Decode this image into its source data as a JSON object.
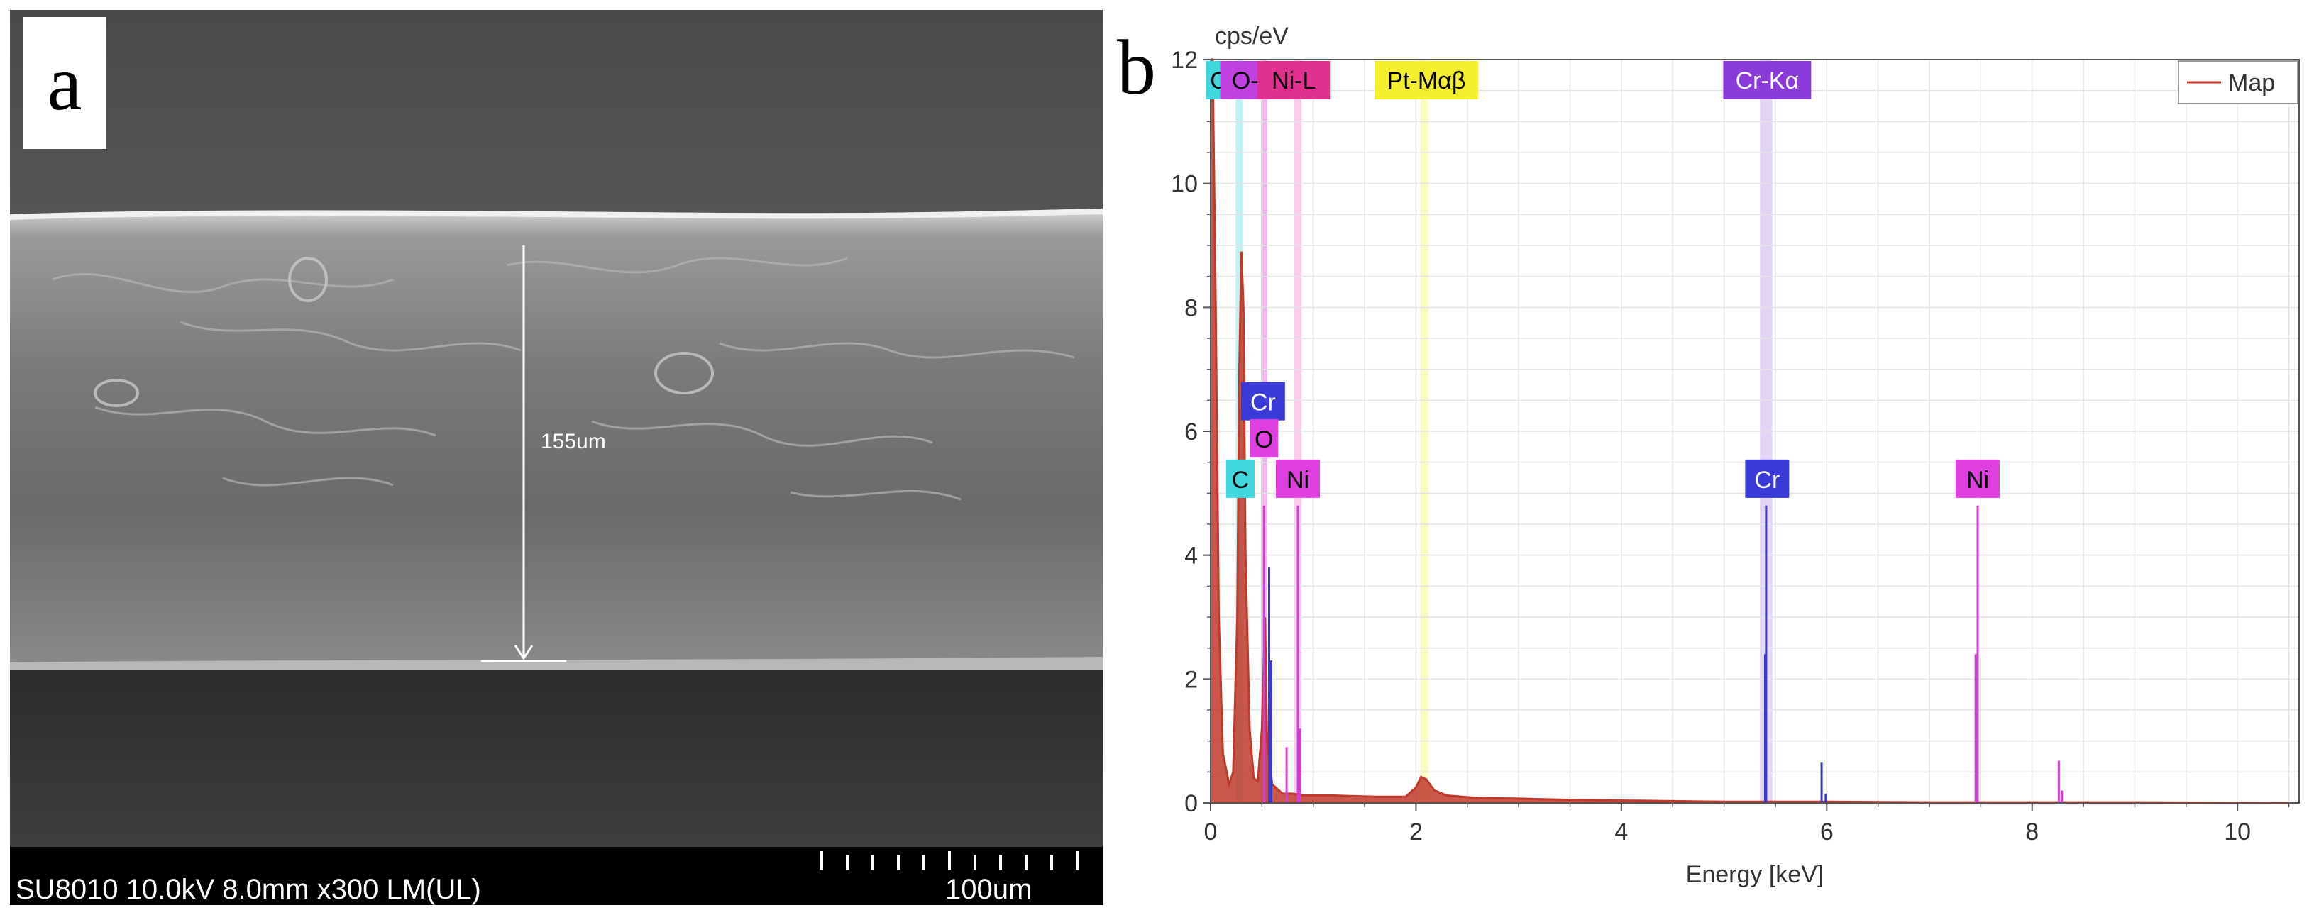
{
  "panel_a": {
    "label": "a",
    "measurement": "155um",
    "info": "SU8010 10.0kV 8.0mm x300 LM(UL)",
    "scale_bar": "100um"
  },
  "panel_b": {
    "label": "b"
  },
  "chart_data": {
    "type": "line",
    "ylabel": "cps/eV",
    "xlabel": "Energy [keV]",
    "xlim": [
      0,
      10.6
    ],
    "ylim": [
      0,
      12
    ],
    "xticks": [
      0,
      2,
      4,
      6,
      8,
      10
    ],
    "yticks": [
      0,
      2,
      4,
      6,
      8,
      10,
      12
    ],
    "grid": true,
    "legend": {
      "position": "top-right",
      "entries": [
        {
          "name": "Map",
          "color": "#c0392b"
        }
      ]
    },
    "series": [
      {
        "name": "Map",
        "color": "#c0392b",
        "points": [
          [
            0.0,
            12.0
          ],
          [
            0.02,
            12.0
          ],
          [
            0.05,
            8.0
          ],
          [
            0.08,
            3.0
          ],
          [
            0.12,
            0.8
          ],
          [
            0.18,
            0.3
          ],
          [
            0.22,
            0.5
          ],
          [
            0.26,
            3.0
          ],
          [
            0.28,
            7.0
          ],
          [
            0.3,
            8.9
          ],
          [
            0.32,
            8.0
          ],
          [
            0.34,
            4.0
          ],
          [
            0.38,
            1.2
          ],
          [
            0.42,
            0.4
          ],
          [
            0.46,
            0.35
          ],
          [
            0.5,
            1.2
          ],
          [
            0.53,
            3.0
          ],
          [
            0.55,
            1.0
          ],
          [
            0.6,
            0.3
          ],
          [
            0.7,
            0.15
          ],
          [
            0.8,
            0.15
          ],
          [
            0.9,
            0.12
          ],
          [
            1.2,
            0.12
          ],
          [
            1.6,
            0.1
          ],
          [
            1.9,
            0.1
          ],
          [
            2.0,
            0.25
          ],
          [
            2.05,
            0.42
          ],
          [
            2.1,
            0.38
          ],
          [
            2.18,
            0.2
          ],
          [
            2.3,
            0.12
          ],
          [
            2.6,
            0.08
          ],
          [
            3.0,
            0.07
          ],
          [
            3.5,
            0.05
          ],
          [
            4.0,
            0.04
          ],
          [
            4.5,
            0.03
          ],
          [
            5.0,
            0.02
          ],
          [
            6.0,
            0.02
          ],
          [
            7.0,
            0.01
          ],
          [
            8.0,
            0.01
          ],
          [
            9.0,
            0.01
          ],
          [
            10.5,
            0.0
          ]
        ]
      }
    ],
    "peak_lines": [
      {
        "element": "Cr",
        "x": 0.57,
        "height": 3.8,
        "color": "#3a3ac8"
      },
      {
        "element": "Cr",
        "x": 0.59,
        "height": 2.3,
        "color": "#3a3ac8"
      },
      {
        "element": "O",
        "x": 0.52,
        "height": 4.8,
        "color": "#d23fd2"
      },
      {
        "element": "Ni",
        "x": 0.85,
        "height": 4.8,
        "color": "#d23fd2"
      },
      {
        "element": "Ni",
        "x": 0.87,
        "height": 1.2,
        "color": "#d23fd2"
      },
      {
        "element": "Ni",
        "x": 0.74,
        "height": 0.9,
        "color": "#d23fd2"
      },
      {
        "element": "Cr",
        "x": 5.41,
        "height": 4.8,
        "color": "#3a3ac8"
      },
      {
        "element": "Cr",
        "x": 5.4,
        "height": 2.4,
        "color": "#3a3ac8"
      },
      {
        "element": "Cr",
        "x": 5.95,
        "height": 0.65,
        "color": "#3a3ac8"
      },
      {
        "element": "Cr",
        "x": 5.99,
        "height": 0.15,
        "color": "#3a3ac8"
      },
      {
        "element": "Ni",
        "x": 7.47,
        "height": 4.8,
        "color": "#d23fd2"
      },
      {
        "element": "Ni",
        "x": 7.45,
        "height": 2.4,
        "color": "#d23fd2"
      },
      {
        "element": "Ni",
        "x": 8.26,
        "height": 0.68,
        "color": "#d23fd2"
      },
      {
        "element": "Ni",
        "x": 8.29,
        "height": 0.2,
        "color": "#d23fd2"
      }
    ],
    "element_bands": [
      {
        "x": 0.28,
        "width": 0.07,
        "color": "#48d8e0"
      },
      {
        "x": 0.52,
        "width": 0.06,
        "color": "#e030e0"
      },
      {
        "x": 0.85,
        "width": 0.07,
        "color": "#f070c8"
      },
      {
        "x": 2.08,
        "width": 0.08,
        "color": "#f4f050"
      },
      {
        "x": 5.41,
        "width": 0.12,
        "color": "#b080e0"
      }
    ],
    "top_labels": [
      {
        "text": "C",
        "x": 0.08,
        "bg": "#40d8dc",
        "fg": "#000000"
      },
      {
        "text": "O-I",
        "x": 0.37,
        "bg": "#c040e0",
        "fg": "#000000"
      },
      {
        "text": "Ni-L",
        "x": 0.81,
        "bg": "#e03090",
        "fg": "#000000"
      },
      {
        "text": "Pt-Mαβ",
        "x": 2.1,
        "bg": "#f4f030",
        "fg": "#000000"
      },
      {
        "text": "Cr-Kα",
        "x": 5.42,
        "bg": "#8a3ad8",
        "fg": "#ffffff"
      }
    ],
    "peak_labels": [
      {
        "text": "Cr",
        "x": 0.51,
        "y": 6.45,
        "bg": "#3a3ad8",
        "fg": "#ffffff"
      },
      {
        "text": "O",
        "x": 0.52,
        "y": 5.85,
        "bg": "#e040e0",
        "fg": "#000000"
      },
      {
        "text": "C",
        "x": 0.29,
        "y": 5.2,
        "bg": "#40d8dc",
        "fg": "#000000"
      },
      {
        "text": "Ni",
        "x": 0.85,
        "y": 5.2,
        "bg": "#e040e0",
        "fg": "#000000"
      },
      {
        "text": "Cr",
        "x": 5.42,
        "y": 5.2,
        "bg": "#3a3ad8",
        "fg": "#ffffff"
      },
      {
        "text": "Ni",
        "x": 7.47,
        "y": 5.2,
        "bg": "#e040e0",
        "fg": "#000000"
      }
    ]
  }
}
